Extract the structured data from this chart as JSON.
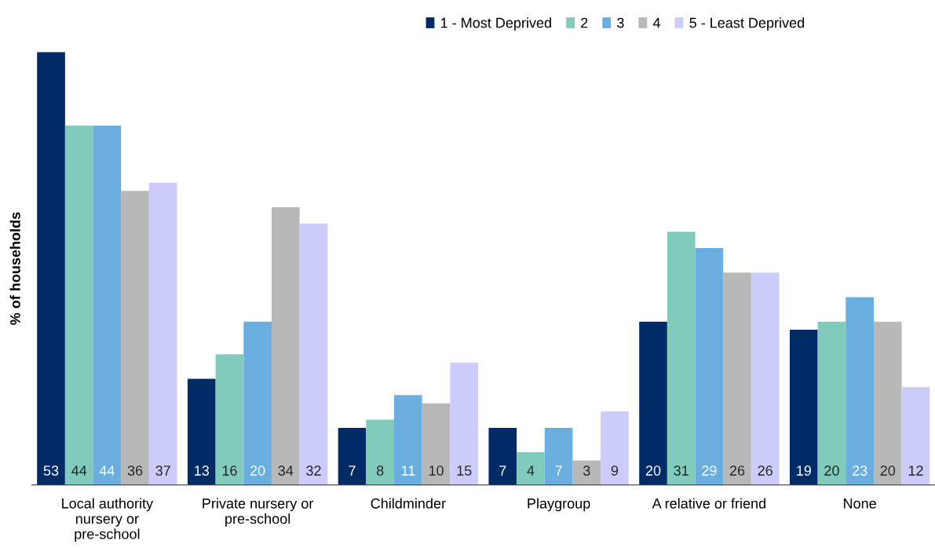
{
  "chart_data": {
    "type": "bar",
    "ylabel": "% of households",
    "categories": [
      "Local authority nursery or pre-school",
      "Private nursery or pre-school",
      "Childminder",
      "Playgroup",
      "A relative or friend",
      "None"
    ],
    "series": [
      {
        "name": "1 - Most Deprived",
        "color": "#002b66",
        "values": [
          53,
          13,
          7,
          7,
          20,
          19
        ]
      },
      {
        "name": "2",
        "color": "#80cbbb",
        "values": [
          44,
          16,
          8,
          4,
          31,
          20
        ]
      },
      {
        "name": "3",
        "color": "#6aaee0",
        "values": [
          44,
          20,
          11,
          7,
          29,
          23
        ]
      },
      {
        "name": "4",
        "color": "#b8b8b8",
        "values": [
          36,
          34,
          10,
          3,
          26,
          20
        ]
      },
      {
        "name": "5 - Least Deprived",
        "color": "#ccccfa",
        "values": [
          37,
          32,
          15,
          9,
          26,
          12
        ]
      }
    ],
    "data_labels": true,
    "legend": "top right",
    "grid": false
  }
}
